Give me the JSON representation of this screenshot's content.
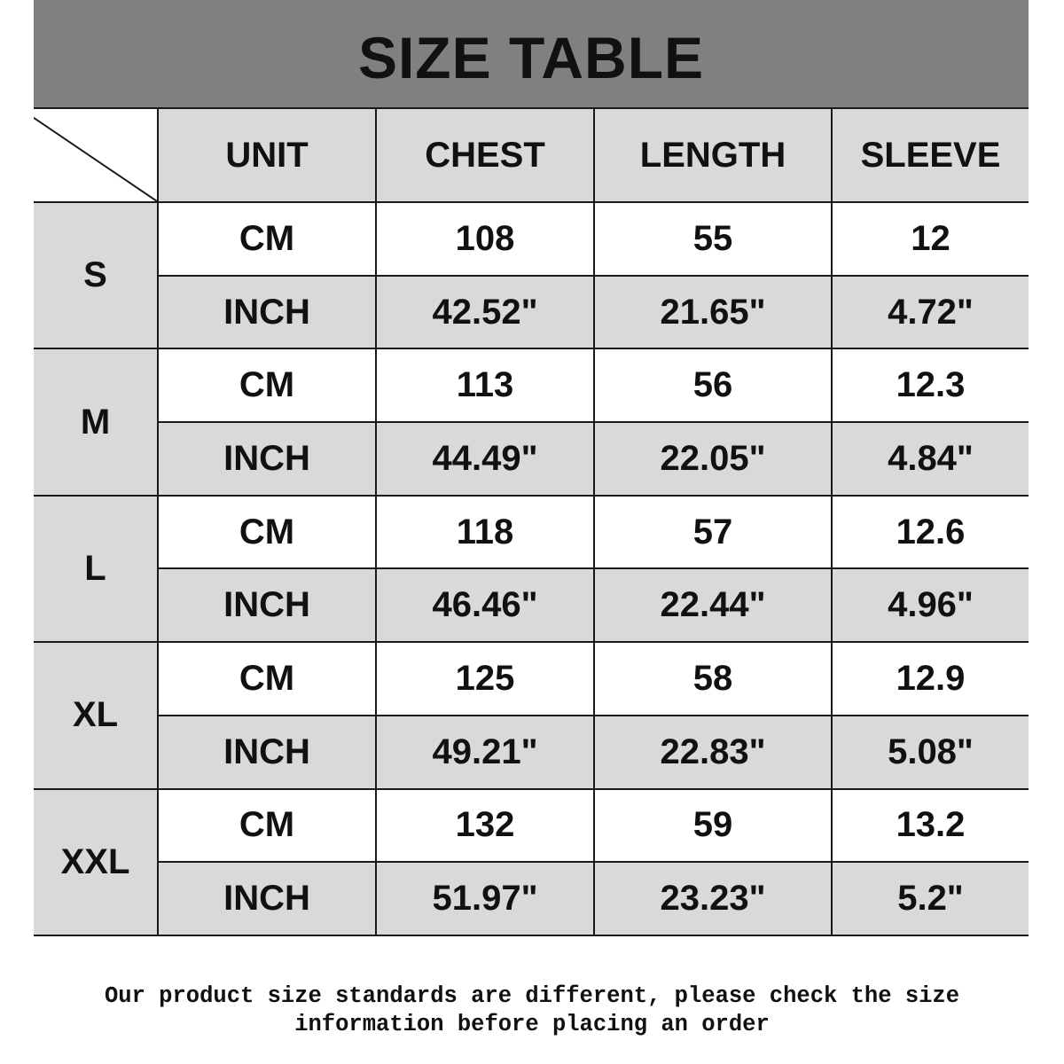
{
  "title": "SIZE TABLE",
  "headers": [
    "UNIT",
    "CHEST",
    "LENGTH",
    "SLEEVE"
  ],
  "sizes": [
    {
      "size": "S",
      "cm": [
        "CM",
        "108",
        "55",
        "12"
      ],
      "inch": [
        "INCH",
        "42.52\"",
        "21.65\"",
        "4.72\""
      ]
    },
    {
      "size": "M",
      "cm": [
        "CM",
        "113",
        "56",
        "12.3"
      ],
      "inch": [
        "INCH",
        "44.49\"",
        "22.05\"",
        "4.84\""
      ]
    },
    {
      "size": "L",
      "cm": [
        "CM",
        "118",
        "57",
        "12.6"
      ],
      "inch": [
        "INCH",
        "46.46\"",
        "22.44\"",
        "4.96\""
      ]
    },
    {
      "size": "XL",
      "cm": [
        "CM",
        "125",
        "58",
        "12.9"
      ],
      "inch": [
        "INCH",
        "49.21\"",
        "22.83\"",
        "5.08\""
      ]
    },
    {
      "size": "XXL",
      "cm": [
        "CM",
        "132",
        "59",
        "13.2"
      ],
      "inch": [
        "INCH",
        "51.97\"",
        "23.23\"",
        "5.2\""
      ]
    }
  ],
  "footer": {
    "line1": "Our product size standards are different, please check the size",
    "line2": "information before placing an order"
  }
}
